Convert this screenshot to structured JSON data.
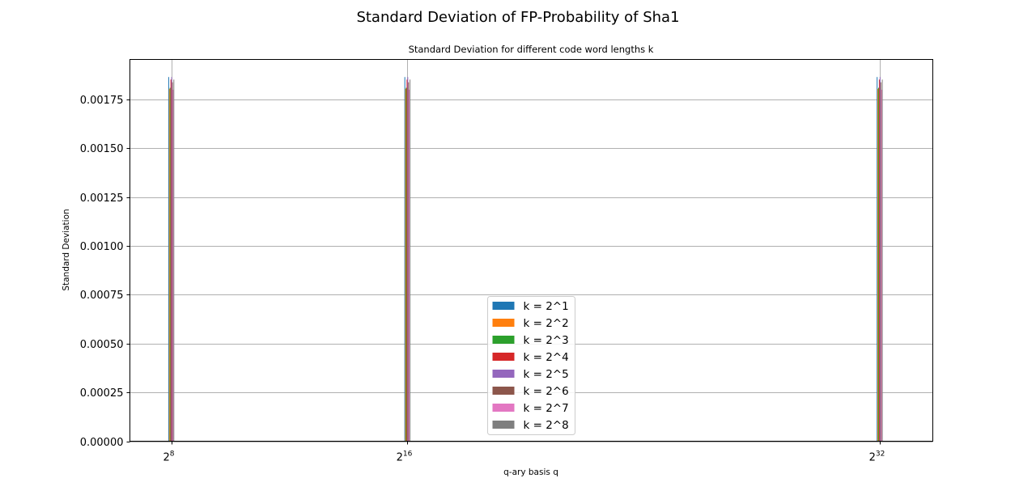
{
  "chart_data": {
    "type": "bar",
    "title": "Standard Deviation of FP-Probability of Sha1",
    "subtitle": "Standard Deviation for different code word lengths k",
    "xlabel": "q-ary basis q",
    "ylabel": "Standard Deviation",
    "categories": [
      {
        "base": "2",
        "exp": "8",
        "pos": 8
      },
      {
        "base": "2",
        "exp": "16",
        "pos": 16
      },
      {
        "base": "2",
        "exp": "32",
        "pos": 32
      }
    ],
    "ylim": [
      0,
      0.001955
    ],
    "yticks": [
      "0.00000",
      "0.00025",
      "0.00050",
      "0.00075",
      "0.00100",
      "0.00125",
      "0.00150",
      "0.00175"
    ],
    "ytick_values": [
      0,
      0.00025,
      0.0005,
      0.00075,
      0.001,
      0.00125,
      0.0015,
      0.00175
    ],
    "grid": true,
    "legend_position": "lower center",
    "series": [
      {
        "name": "k = 2^1",
        "color": "#1f77b4",
        "values": [
          0.001865,
          0.001865,
          0.001865
        ]
      },
      {
        "name": "k = 2^2",
        "color": "#ff7f0e",
        "values": [
          0.001805,
          0.001805,
          0.001805
        ]
      },
      {
        "name": "k = 2^3",
        "color": "#2ca02c",
        "values": [
          0.00181,
          0.00181,
          0.00181
        ]
      },
      {
        "name": "k = 2^4",
        "color": "#d62728",
        "values": [
          0.001852,
          0.001852,
          0.001852
        ]
      },
      {
        "name": "k = 2^5",
        "color": "#9467bd",
        "values": [
          0.001865,
          0.001865,
          0.001865
        ]
      },
      {
        "name": "k = 2^6",
        "color": "#8c564b",
        "values": [
          0.001838,
          0.001838,
          0.001838
        ]
      },
      {
        "name": "k = 2^7",
        "color": "#e377c2",
        "values": [
          0.0018,
          0.0018,
          0.0018
        ]
      },
      {
        "name": "k = 2^8",
        "color": "#7f7f7f",
        "values": [
          0.001852,
          0.001852,
          0.001852
        ]
      }
    ]
  }
}
